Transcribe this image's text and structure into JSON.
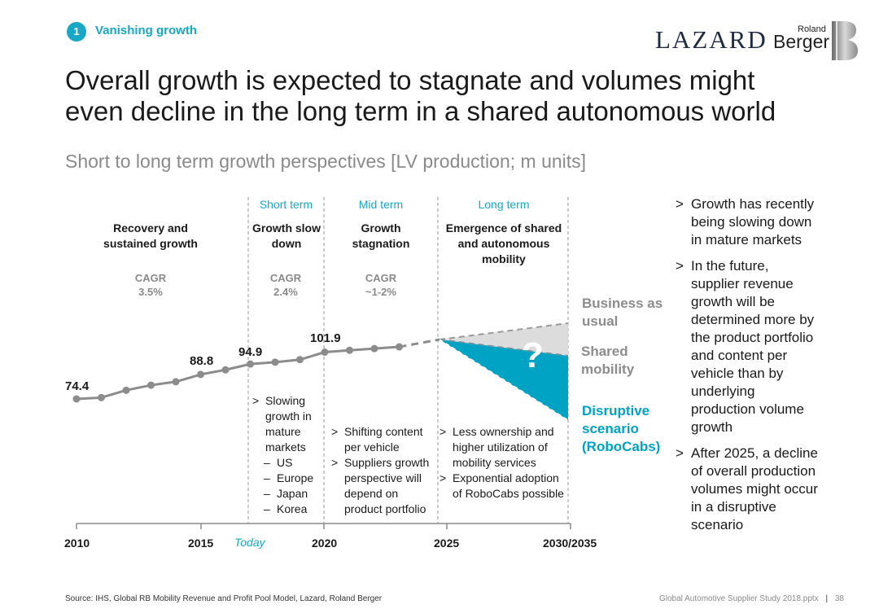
{
  "section": {
    "number": "1",
    "label": "Vanishing growth"
  },
  "logos": {
    "lazard": "LAZARD",
    "roland": "Roland",
    "berger": "Berger"
  },
  "title": "Overall growth is expected to stagnate and volumes might even decline in the long term in a shared autonomous world",
  "subtitle": "Short to long term growth perspectives [LV production; m units]",
  "phases": [
    {
      "term": "",
      "title": "Recovery and sustained growth",
      "cagr_label": "CAGR",
      "cagr_value": "3.5%"
    },
    {
      "term": "Short term",
      "title": "Growth slow down",
      "cagr_label": "CAGR",
      "cagr_value": "2.4%"
    },
    {
      "term": "Mid term",
      "title": "Growth stagnation",
      "cagr_label": "CAGR",
      "cagr_value": "~1-2%"
    },
    {
      "term": "Long term",
      "title": "Emergence of shared and autonomous mobility"
    }
  ],
  "chart_data": {
    "type": "line",
    "title": "Short to long term growth perspectives [LV production; m units]",
    "x": [
      2010,
      2011,
      2012,
      2013,
      2014,
      2015,
      2016,
      2017,
      2018,
      2019,
      2020,
      2021,
      2022,
      2023
    ],
    "values": [
      74.4,
      75.2,
      79.5,
      82.5,
      84.5,
      88.8,
      91.5,
      94.9,
      96.0,
      97.5,
      101.9,
      103.0,
      104.0,
      105.0
    ],
    "labeled_points": {
      "2010": "74.4",
      "2015": "88.8",
      "2017": "94.9",
      "2020": "101.9"
    },
    "axis_ticks": [
      "2010",
      "2015",
      "2020",
      "2025",
      "2030/2035"
    ],
    "today_label": "Today",
    "scenarios": [
      "Business as usual",
      "Shared mobility",
      "Disruptive scenario (RoboCabs)"
    ],
    "question_mark": "?",
    "colors": {
      "line": "#8c8c8c",
      "accent": "#00a3c4",
      "bau_fill": "#dcdcdc"
    }
  },
  "notes": {
    "short": {
      "bullet": "Slowing growth in mature markets",
      "sub": [
        "US",
        "Europe",
        "Japan",
        "Korea"
      ]
    },
    "mid": [
      "Shifting content per vehicle",
      "Suppliers growth perspective will depend on product portfolio"
    ],
    "long": [
      "Less ownership and higher utilization of mobility services",
      "Exponential adoption of RoboCabs possible"
    ]
  },
  "side_bullets": [
    "Growth has recently being slowing down in mature markets",
    "In the future, supplier revenue growth will be determined more by the product portfolio and content per vehicle than by underlying production volume growth",
    "After 2025, a decline of overall production volumes might occur in a disruptive scenario"
  ],
  "source": "Source: IHS, Global RB Mobility Revenue and Profit Pool Model, Lazard, Roland Berger",
  "footer": {
    "file": "Global Automotive Supplier Study 2018.pptx",
    "separator": "|",
    "page": "38"
  }
}
